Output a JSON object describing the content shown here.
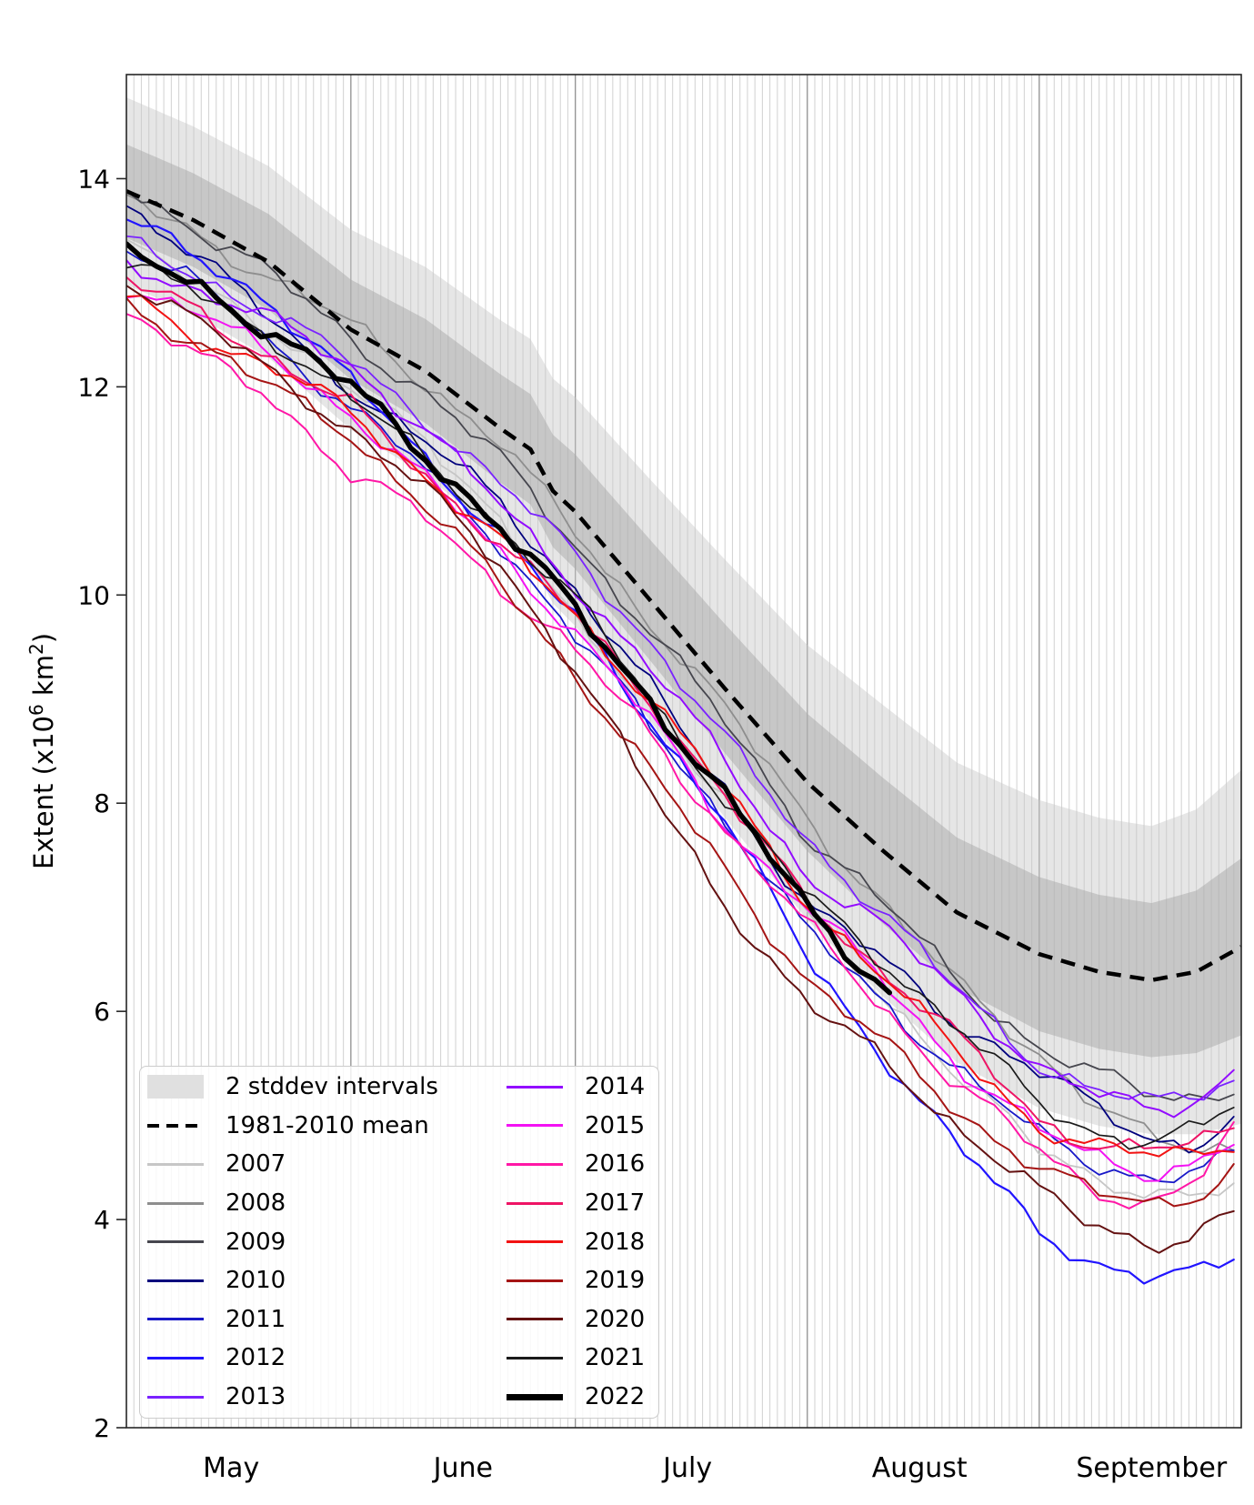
{
  "page": {
    "background": "#ffffff"
  },
  "chart_data": {
    "type": "line",
    "title": "",
    "xlabel": "",
    "ylabel": "Extent (x10^6 km^2)",
    "ylabel_parts": [
      {
        "text": "Extent (x10"
      },
      {
        "text": "6",
        "sup": true
      },
      {
        "text": " km"
      },
      {
        "text": "2",
        "sup": true
      },
      {
        "text": ")"
      }
    ],
    "x_axis": {
      "unit": "days since May 1",
      "lim": [
        1,
        150
      ],
      "daily_gridlines": true,
      "month_boundary_days": [
        31,
        61,
        92,
        123
      ],
      "month_labels": [
        {
          "label": "May",
          "day": 15
        },
        {
          "label": "June",
          "day": 46
        },
        {
          "label": "July",
          "day": 76
        },
        {
          "label": "August",
          "day": 107
        },
        {
          "label": "September",
          "day": 138
        }
      ]
    },
    "y_axis": {
      "lim": [
        2,
        15
      ],
      "ticks": [
        2,
        4,
        6,
        8,
        10,
        12,
        14
      ]
    },
    "band": {
      "label": "2 stddev intervals",
      "mean_label": "1981-2010 mean",
      "days": [
        1,
        10,
        20,
        31,
        41,
        51,
        55,
        58,
        61,
        71,
        81,
        92,
        102,
        112,
        123,
        131,
        138,
        144,
        150
      ],
      "mean": [
        13.88,
        13.6,
        13.2,
        12.55,
        12.15,
        11.6,
        11.4,
        11.0,
        10.8,
        9.95,
        9.1,
        8.2,
        7.55,
        6.95,
        6.55,
        6.38,
        6.3,
        6.38,
        6.62
      ],
      "sigma": [
        0.45,
        0.45,
        0.46,
        0.48,
        0.5,
        0.52,
        0.53,
        0.54,
        0.55,
        0.58,
        0.62,
        0.66,
        0.7,
        0.72,
        0.74,
        0.74,
        0.74,
        0.78,
        0.85
      ]
    },
    "series_days": [
      1,
      10,
      20,
      31,
      41,
      51,
      61,
      71,
      81,
      92,
      102,
      112,
      123,
      130,
      138,
      144,
      150
    ],
    "series": [
      {
        "name": "2007",
        "color": "#c6c6c6",
        "width": 1.8,
        "values": [
          13.35,
          13.0,
          12.6,
          11.95,
          11.5,
          10.75,
          9.7,
          8.95,
          8.05,
          6.9,
          6.2,
          5.35,
          4.7,
          4.45,
          4.2,
          4.2,
          4.32
        ]
      },
      {
        "name": "2008",
        "color": "#8e8e8e",
        "width": 1.8,
        "values": [
          13.8,
          13.5,
          13.05,
          12.6,
          12.05,
          11.45,
          10.6,
          9.75,
          8.9,
          7.85,
          7.05,
          6.25,
          5.6,
          5.15,
          4.75,
          4.65,
          4.72
        ]
      },
      {
        "name": "2009",
        "color": "#46464e",
        "width": 1.8,
        "values": [
          13.9,
          13.55,
          13.1,
          12.45,
          11.95,
          11.3,
          10.5,
          9.65,
          8.78,
          7.7,
          7.05,
          6.3,
          5.65,
          5.4,
          5.2,
          5.18,
          5.28
        ]
      },
      {
        "name": "2010",
        "color": "#00007d",
        "width": 1.8,
        "values": [
          13.75,
          13.3,
          12.65,
          12.0,
          11.45,
          10.9,
          10.05,
          9.1,
          8.15,
          7.0,
          6.5,
          5.9,
          5.4,
          5.1,
          4.78,
          4.72,
          5.0
        ]
      },
      {
        "name": "2011",
        "color": "#1818c8",
        "width": 1.8,
        "values": [
          13.35,
          13.0,
          12.45,
          11.8,
          11.2,
          10.5,
          9.6,
          8.75,
          7.85,
          6.75,
          6.1,
          5.45,
          4.8,
          4.55,
          4.4,
          4.45,
          4.62
        ]
      },
      {
        "name": "2012",
        "color": "#2114ff",
        "width": 2.2,
        "values": [
          13.6,
          13.25,
          12.85,
          12.05,
          11.3,
          10.6,
          9.75,
          8.8,
          7.85,
          6.5,
          5.6,
          4.7,
          3.9,
          3.6,
          3.42,
          3.46,
          3.68
        ]
      },
      {
        "name": "2013",
        "color": "#7a22ff",
        "width": 1.8,
        "values": [
          13.38,
          13.1,
          12.7,
          12.25,
          11.7,
          11.05,
          10.4,
          9.55,
          8.6,
          7.65,
          6.95,
          6.2,
          5.5,
          5.25,
          5.1,
          5.2,
          5.42
        ]
      },
      {
        "name": "2014",
        "color": "#930bff",
        "width": 2.0,
        "values": [
          13.2,
          12.95,
          12.65,
          12.2,
          11.6,
          10.85,
          10.1,
          9.3,
          8.4,
          7.3,
          6.8,
          6.2,
          5.45,
          5.2,
          5.05,
          5.15,
          5.48
        ]
      },
      {
        "name": "2015",
        "color": "#f312f3",
        "width": 2.0,
        "values": [
          12.95,
          12.75,
          12.3,
          11.75,
          11.1,
          10.4,
          9.65,
          8.8,
          7.8,
          7.0,
          6.3,
          5.5,
          4.85,
          4.6,
          4.45,
          4.55,
          4.78
        ]
      },
      {
        "name": "2016",
        "color": "#ff17a6",
        "width": 2.0,
        "values": [
          12.7,
          12.3,
          11.95,
          11.15,
          10.75,
          10.1,
          9.45,
          8.65,
          7.75,
          6.8,
          6.05,
          5.3,
          4.65,
          4.3,
          4.15,
          4.35,
          4.95
        ]
      },
      {
        "name": "2017",
        "color": "#ee1465",
        "width": 2.0,
        "values": [
          13.0,
          12.75,
          12.3,
          11.8,
          11.15,
          10.5,
          9.8,
          9.0,
          8.05,
          7.05,
          6.4,
          5.75,
          4.95,
          4.75,
          4.65,
          4.72,
          4.9
        ]
      },
      {
        "name": "2018",
        "color": "#f21212",
        "width": 2.0,
        "values": [
          12.88,
          12.5,
          12.2,
          11.75,
          11.15,
          10.5,
          9.8,
          9.02,
          8.12,
          7.05,
          6.35,
          5.6,
          4.9,
          4.7,
          4.6,
          4.65,
          4.8
        ]
      },
      {
        "name": "2019",
        "color": "#a51414",
        "width": 2.0,
        "values": [
          12.8,
          12.45,
          12.0,
          11.55,
          10.85,
          10.1,
          9.25,
          8.3,
          7.35,
          6.3,
          5.7,
          5.05,
          4.5,
          4.25,
          4.15,
          4.25,
          4.52
        ]
      },
      {
        "name": "2020",
        "color": "#641111",
        "width": 2.0,
        "values": [
          13.05,
          12.65,
          12.15,
          11.6,
          11.0,
          10.3,
          9.3,
          8.1,
          7.05,
          6.05,
          5.55,
          4.9,
          4.25,
          3.95,
          3.78,
          3.85,
          4.1
        ]
      },
      {
        "name": "2021",
        "color": "#1a1a1a",
        "width": 1.7,
        "values": [
          13.2,
          12.9,
          12.5,
          11.9,
          11.3,
          10.65,
          9.95,
          9.0,
          8.05,
          7.1,
          6.5,
          5.85,
          5.1,
          4.85,
          4.75,
          4.85,
          5.12
        ]
      },
      {
        "name": "2022",
        "color": "#000000",
        "width": 5.5,
        "days": [
          1,
          10,
          20,
          31,
          41,
          51,
          61,
          71,
          81,
          92,
          98,
          104
        ],
        "values": [
          13.25,
          13.0,
          12.55,
          12.0,
          11.35,
          10.65,
          9.85,
          9.0,
          8.05,
          7.0,
          6.55,
          6.12
        ]
      }
    ],
    "style": {
      "grid_minor_color": "#d5d5d5",
      "grid_major_color": "#8f8f8f",
      "spine_color": "#262626",
      "band_outer_color": "#c8c8c8",
      "band_outer_opacity": 0.45,
      "band_inner_color": "#a8a8a8",
      "band_inner_opacity": 0.5,
      "mean_dash": "16 10",
      "mean_width": 4.5
    }
  },
  "legend": {
    "columns": [
      [
        {
          "type": "patch",
          "label": "2 stddev intervals",
          "color": "#e0e0e0"
        },
        {
          "type": "dashed",
          "label": "1981-2010 mean",
          "color": "#000000",
          "width": 4.5
        },
        {
          "type": "line",
          "label": "2007",
          "color": "#c6c6c6",
          "width": 3
        },
        {
          "type": "line",
          "label": "2008",
          "color": "#8e8e8e",
          "width": 3
        },
        {
          "type": "line",
          "label": "2009",
          "color": "#46464e",
          "width": 3
        },
        {
          "type": "line",
          "label": "2010",
          "color": "#00007d",
          "width": 3
        },
        {
          "type": "line",
          "label": "2011",
          "color": "#1818c8",
          "width": 3
        },
        {
          "type": "line",
          "label": "2012",
          "color": "#2114ff",
          "width": 3
        },
        {
          "type": "line",
          "label": "2013",
          "color": "#7a22ff",
          "width": 3
        }
      ],
      [
        {
          "type": "line",
          "label": "2014",
          "color": "#930bff",
          "width": 3
        },
        {
          "type": "line",
          "label": "2015",
          "color": "#f312f3",
          "width": 3
        },
        {
          "type": "line",
          "label": "2016",
          "color": "#ff17a6",
          "width": 3
        },
        {
          "type": "line",
          "label": "2017",
          "color": "#ee1465",
          "width": 3
        },
        {
          "type": "line",
          "label": "2018",
          "color": "#f21212",
          "width": 3
        },
        {
          "type": "line",
          "label": "2019",
          "color": "#a51414",
          "width": 3
        },
        {
          "type": "line",
          "label": "2020",
          "color": "#641111",
          "width": 3
        },
        {
          "type": "line",
          "label": "2021",
          "color": "#1a1a1a",
          "width": 3
        },
        {
          "type": "line",
          "label": "2022",
          "color": "#000000",
          "width": 7
        }
      ]
    ]
  }
}
